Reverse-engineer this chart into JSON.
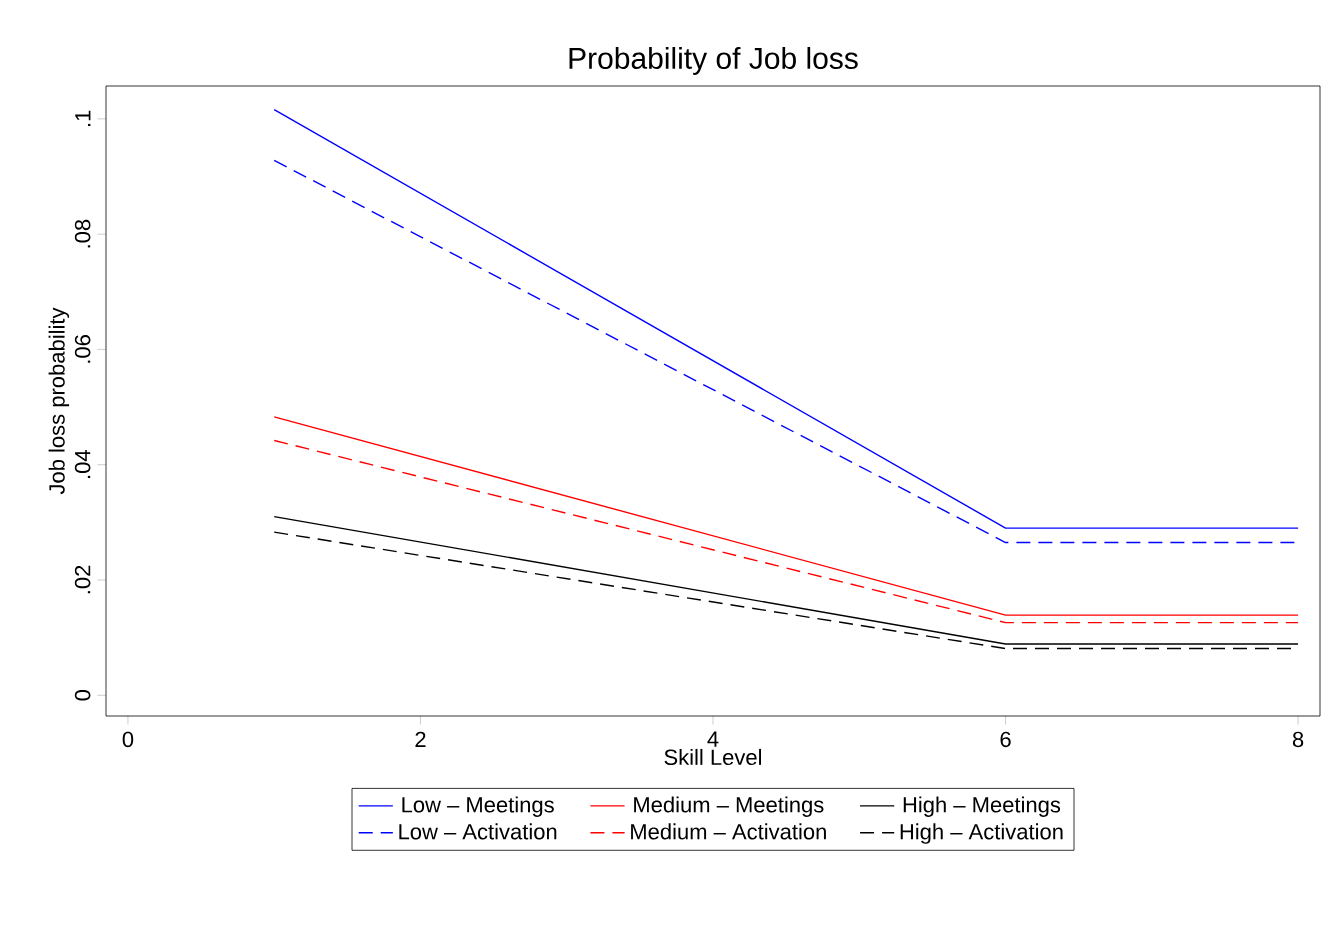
{
  "chart_data": {
    "type": "line",
    "title": "Probability of Job loss",
    "xlabel": "Skill Level",
    "ylabel": "Job loss probability",
    "x": [
      1,
      6,
      8
    ],
    "xlim": [
      -0.15,
      8.15
    ],
    "xticks": [
      0,
      2,
      4,
      6,
      8
    ],
    "ylim": [
      -0.0036,
      0.1057
    ],
    "yticks": [
      0,
      {
        "value": 0.02,
        "label": ".02"
      },
      {
        "value": 0.04,
        "label": ".04"
      },
      {
        "value": 0.06,
        "label": ".06"
      },
      {
        "value": 0.08,
        "label": ".08"
      },
      {
        "value": 0.1,
        "label": ".1"
      }
    ],
    "grid": false,
    "legend": "bottom",
    "marker": "none",
    "series": [
      {
        "name": "Low – Meetings",
        "color": "#0000ff",
        "line_style": "solid",
        "values": [
          0.1016,
          0.029,
          0.029
        ]
      },
      {
        "name": "Medium – Meetings",
        "color": "#ff0000",
        "line_style": "solid",
        "values": [
          0.0483,
          0.0139,
          0.0139
        ]
      },
      {
        "name": "High – Meetings",
        "color": "#000000",
        "line_style": "solid",
        "values": [
          0.031,
          0.0089,
          0.0089
        ]
      },
      {
        "name": "Low – Activation",
        "color": "#0000ff",
        "line_style": "dashed",
        "values": [
          0.0928,
          0.0265,
          0.0265
        ]
      },
      {
        "name": "Medium – Activation",
        "color": "#ff0000",
        "line_style": "dashed",
        "values": [
          0.0442,
          0.0126,
          0.0126
        ]
      },
      {
        "name": "High – Activation",
        "color": "#000000",
        "line_style": "dashed",
        "values": [
          0.0283,
          0.0081,
          0.0081
        ]
      }
    ]
  }
}
